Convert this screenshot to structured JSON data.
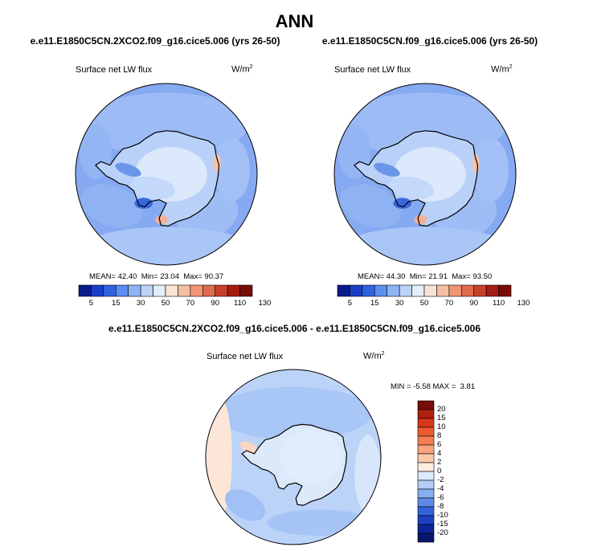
{
  "title": "ANN",
  "panels": [
    {
      "case": "e.e11.E1850C5CN.2XCO2.f09_g16.cice5.006 (yrs 26-50)",
      "variable": "Surface net LW flux",
      "unit": "W/m",
      "unit_sup": "2",
      "mean_label": "MEAN=",
      "mean": "42.40",
      "min_label": "Min=",
      "min": "23.04",
      "max_label": "Max=",
      "max": "90.37"
    },
    {
      "case": "e.e11.E1850C5CN.f09_g16.cice5.006 (yrs 26-50)",
      "variable": "Surface net LW flux",
      "unit": "W/m",
      "unit_sup": "2",
      "mean_label": "MEAN=",
      "mean": "44.30",
      "min_label": "Min=",
      "min": "21.91",
      "max_label": "Max=",
      "max": "93.50"
    }
  ],
  "diff": {
    "case": "e.e11.E1850C5CN.2XCO2.f09_g16.cice5.006 - e.e11.E1850C5CN.f09_g16.cice5.006",
    "variable": "Surface net LW flux",
    "unit": "W/m",
    "unit_sup": "2",
    "min_label": "MIN =",
    "min": "-5.58",
    "max_label": "MAX =",
    "max": "3.81"
  },
  "chart_data": [
    {
      "type": "heatmap",
      "projection": "south-polar-stereographic",
      "title": "e.e11.E1850C5CN.2XCO2.f09_g16.cice5.006 (yrs 26-50)",
      "field": "Surface net LW flux",
      "units": "W/m2",
      "mean": 42.4,
      "min": 23.04,
      "max": 90.37,
      "colorbar_ticks": [
        "5",
        "15",
        "30",
        "50",
        "70",
        "90",
        "110",
        "130"
      ],
      "colorbar_colors": [
        "#0a1a8c",
        "#1a3ec8",
        "#2f62e0",
        "#5b8ef0",
        "#8fb4f6",
        "#bcd3f8",
        "#e4eefb",
        "#fbe3d4",
        "#f5bfa3",
        "#ef9575",
        "#e06a4c",
        "#c8402a",
        "#a51c12",
        "#7a0c08"
      ],
      "colorbar_placement": "bottom"
    },
    {
      "type": "heatmap",
      "projection": "south-polar-stereographic",
      "title": "e.e11.E1850C5CN.f09_g16.cice5.006 (yrs 26-50)",
      "field": "Surface net LW flux",
      "units": "W/m2",
      "mean": 44.3,
      "min": 21.91,
      "max": 93.5,
      "colorbar_ticks": [
        "5",
        "15",
        "30",
        "50",
        "70",
        "90",
        "110",
        "130"
      ],
      "colorbar_colors": [
        "#0a1a8c",
        "#1a3ec8",
        "#2f62e0",
        "#5b8ef0",
        "#8fb4f6",
        "#bcd3f8",
        "#e4eefb",
        "#fbe3d4",
        "#f5bfa3",
        "#ef9575",
        "#e06a4c",
        "#c8402a",
        "#a51c12",
        "#7a0c08"
      ],
      "colorbar_placement": "bottom"
    },
    {
      "type": "heatmap",
      "projection": "south-polar-stereographic",
      "title": "e.e11.E1850C5CN.2XCO2.f09_g16.cice5.006 - e.e11.E1850C5CN.f09_g16.cice5.006",
      "field": "Surface net LW flux",
      "units": "W/m2",
      "min": -5.58,
      "max": 3.81,
      "colorbar_ticks": [
        "20",
        "15",
        "10",
        "8",
        "6",
        "4",
        "2",
        "0",
        "-2",
        "-4",
        "-6",
        "-8",
        "-10",
        "-15",
        "-20"
      ],
      "colorbar_colors": [
        "#7a0c08",
        "#b0200e",
        "#d8381a",
        "#ee5a2e",
        "#f47e52",
        "#f8a47e",
        "#fbc9aa",
        "#fdece0",
        "#dce9fb",
        "#b3cdf6",
        "#86aef1",
        "#5b8ae8",
        "#3563dc",
        "#1c3fc4",
        "#0e2596",
        "#08166c"
      ],
      "colorbar_placement": "right"
    }
  ]
}
